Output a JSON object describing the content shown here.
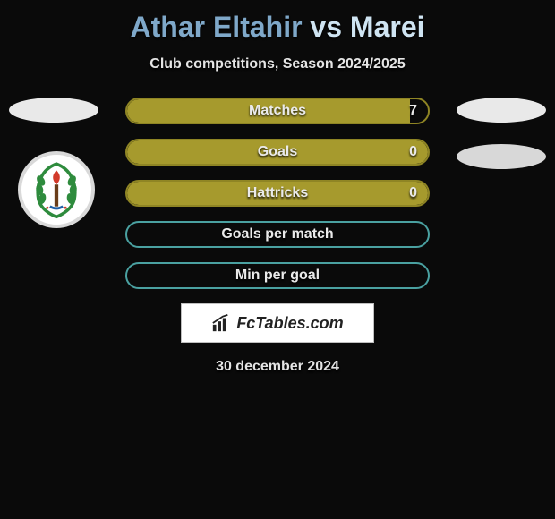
{
  "title": {
    "player1": "Athar Eltahir",
    "vs": "vs",
    "player2": "Marei"
  },
  "subtitle": "Club competitions, Season 2024/2025",
  "colors": {
    "title_primary": "#7fa8c9",
    "title_highlight": "#cfe4f2",
    "bar_olive": "#a69a2d",
    "bar_olive_border": "#8f8524",
    "bar_teal_border": "#4aa1a1",
    "background": "#0a0a0a",
    "text_light": "#e5e5e5",
    "oval": "#e9e9e9"
  },
  "stats": [
    {
      "label": "Matches",
      "value": "7",
      "fill_pct": 94,
      "fill_color": "#a69a2d",
      "border_color": "#8f8524",
      "show_value": true
    },
    {
      "label": "Goals",
      "value": "0",
      "fill_pct": 100,
      "fill_color": "#a69a2d",
      "border_color": "#8f8524",
      "show_value": true
    },
    {
      "label": "Hattricks",
      "value": "0",
      "fill_pct": 100,
      "fill_color": "#a69a2d",
      "border_color": "#8f8524",
      "show_value": true
    },
    {
      "label": "Goals per match",
      "value": "",
      "fill_pct": 0,
      "fill_color": "#a69a2d",
      "border_color": "#4aa1a1",
      "show_value": false
    },
    {
      "label": "Min per goal",
      "value": "",
      "fill_pct": 0,
      "fill_color": "#a69a2d",
      "border_color": "#4aa1a1",
      "show_value": false
    }
  ],
  "club_badge": {
    "wreath_color": "#2e8b3d",
    "torch_flame_color": "#d23a2a",
    "torch_stem_color": "#6a3d1a",
    "blue_accent": "#1f5fa8"
  },
  "logo_text": "FcTables.com",
  "date": "30 december 2024"
}
